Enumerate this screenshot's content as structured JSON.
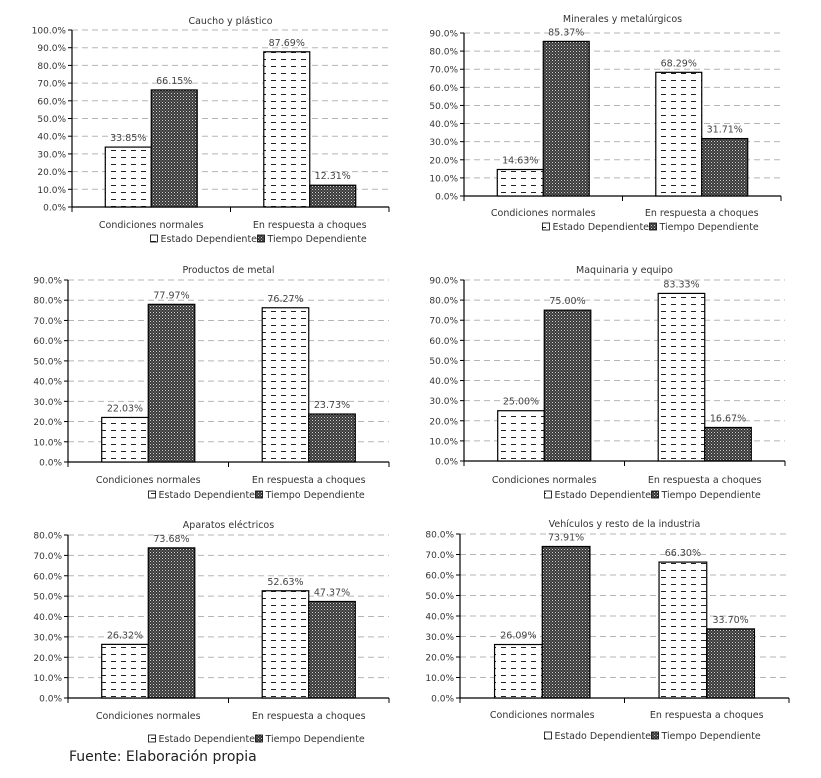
{
  "source_note": "Fuente: Elaboración propia",
  "legend": {
    "estado": "Estado Dependiente",
    "tiempo": "Tiempo Dependiente"
  },
  "chart_data": [
    {
      "type": "bar",
      "title": "Caucho y plástico",
      "categories": [
        "Condiciones normales",
        "En respuesta a choques"
      ],
      "series": [
        {
          "name": "Estado Dependiente",
          "values": [
            33.85,
            87.69
          ],
          "labels": [
            "33.85%",
            "87.69%"
          ]
        },
        {
          "name": "Tiempo Dependiente",
          "values": [
            66.15,
            12.31
          ],
          "labels": [
            "66.15%",
            "12.31%"
          ]
        }
      ],
      "yticks": [
        "0.0%",
        "10.0%",
        "20.0%",
        "30.0%",
        "40.0%",
        "50.0%",
        "60.0%",
        "70.0%",
        "80.0%",
        "90.0%",
        "100.0%"
      ],
      "ylim": [
        0,
        100
      ],
      "xlabel": "",
      "ylabel": "",
      "grid": true,
      "legend_position": "bottom"
    },
    {
      "type": "bar",
      "title": "Minerales y metalúrgicos",
      "categories": [
        "Condiciones normales",
        "En respuesta a choques"
      ],
      "series": [
        {
          "name": "Estado Dependiente",
          "values": [
            14.63,
            68.29
          ],
          "labels": [
            "14.63%",
            "68.29%"
          ]
        },
        {
          "name": "Tiempo Dependiente",
          "values": [
            85.37,
            31.71
          ],
          "labels": [
            "85.37%",
            "31.71%"
          ]
        }
      ],
      "yticks": [
        "0.0%",
        "10.0%",
        "20.0%",
        "30.0%",
        "40.0%",
        "50.0%",
        "60.0%",
        "70.0%",
        "80.0%",
        "90.0%"
      ],
      "ylim": [
        0,
        90
      ],
      "xlabel": "",
      "ylabel": "",
      "grid": true,
      "legend_position": "bottom"
    },
    {
      "type": "bar",
      "title": "Productos de metal",
      "categories": [
        "Condiciones normales",
        "En respuesta a choques"
      ],
      "series": [
        {
          "name": "Estado Dependiente",
          "values": [
            22.03,
            76.27
          ],
          "labels": [
            "22.03%",
            "76.27%"
          ]
        },
        {
          "name": "Tiempo Dependiente",
          "values": [
            77.97,
            23.73
          ],
          "labels": [
            "77.97%",
            "23.73%"
          ]
        }
      ],
      "yticks": [
        "0.0%",
        "10.0%",
        "20.0%",
        "30.0%",
        "40.0%",
        "50.0%",
        "60.0%",
        "70.0%",
        "80.0%",
        "90.0%"
      ],
      "ylim": [
        0,
        90
      ],
      "xlabel": "",
      "ylabel": "",
      "grid": true,
      "legend_position": "bottom"
    },
    {
      "type": "bar",
      "title": "Maquinaria y equipo",
      "categories": [
        "Condiciones normales",
        "En respuesta a choques"
      ],
      "series": [
        {
          "name": "Estado Dependiente",
          "values": [
            25.0,
            83.33
          ],
          "labels": [
            "25.00%",
            "83.33%"
          ]
        },
        {
          "name": "Tiempo Dependiente",
          "values": [
            75.0,
            16.67
          ],
          "labels": [
            "75.00%",
            "16.67%"
          ]
        }
      ],
      "yticks": [
        "0.0%",
        "10.0%",
        "20.0%",
        "30.0%",
        "40.0%",
        "50.0%",
        "60.0%",
        "70.0%",
        "80.0%",
        "90.0%"
      ],
      "ylim": [
        0,
        90
      ],
      "xlabel": "",
      "ylabel": "",
      "grid": true,
      "legend_position": "bottom"
    },
    {
      "type": "bar",
      "title": "Aparatos eléctricos",
      "categories": [
        "Condiciones normales",
        "En respuesta a choques"
      ],
      "series": [
        {
          "name": "Estado Dependiente",
          "values": [
            26.32,
            52.63
          ],
          "labels": [
            "26.32%",
            "52.63%"
          ]
        },
        {
          "name": "Tiempo Dependiente",
          "values": [
            73.68,
            47.37
          ],
          "labels": [
            "73.68%",
            "47.37%"
          ]
        }
      ],
      "yticks": [
        "0.0%",
        "10.0%",
        "20.0%",
        "30.0%",
        "40.0%",
        "50.0%",
        "60.0%",
        "70.0%",
        "80.0%"
      ],
      "ylim": [
        0,
        80
      ],
      "xlabel": "",
      "ylabel": "",
      "grid": true,
      "legend_position": "bottom"
    },
    {
      "type": "bar",
      "title": "Vehículos y resto de la industria",
      "categories": [
        "Condiciones normales",
        "En respuesta a choques"
      ],
      "series": [
        {
          "name": "Estado Dependiente",
          "values": [
            26.09,
            66.3
          ],
          "labels": [
            "26.09%",
            "66.30%"
          ]
        },
        {
          "name": "Tiempo Dependiente",
          "values": [
            73.91,
            33.7
          ],
          "labels": [
            "73.91%",
            "33.70%"
          ]
        }
      ],
      "yticks": [
        "0.0%",
        "10.0%",
        "20.0%",
        "30.0%",
        "40.0%",
        "50.0%",
        "60.0%",
        "70.0%",
        "80.0%"
      ],
      "ylim": [
        0,
        80
      ],
      "xlabel": "",
      "ylabel": "",
      "grid": true,
      "legend_position": "bottom"
    }
  ]
}
